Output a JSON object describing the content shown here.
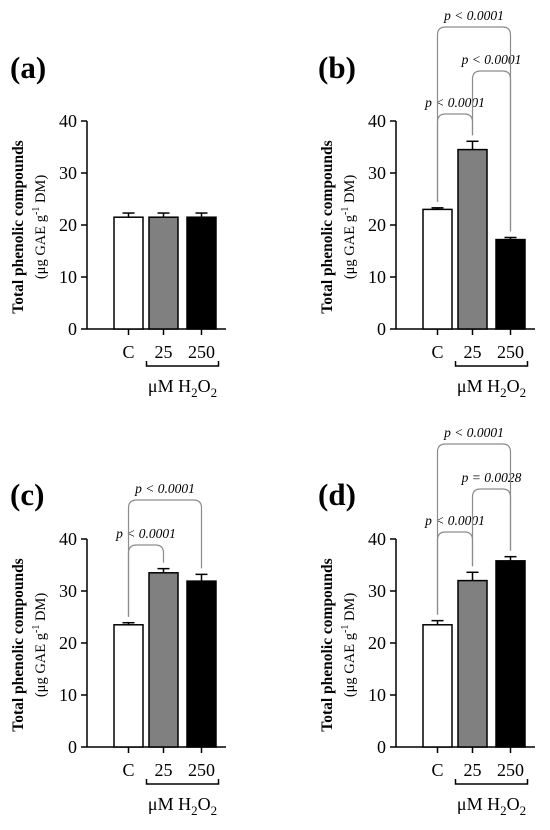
{
  "figure": {
    "ylabel_line1": "Total phenolic compounds",
    "ylabel_unit_prefix": "(μg GAE g",
    "ylabel_unit_exp": "-1",
    "ylabel_unit_suffix": " DM)",
    "treatment_label_prefix": "μM H",
    "treatment_label_sub1": "2",
    "treatment_label_mid": "O",
    "treatment_label_sub2": "2"
  },
  "colors": {
    "control": "#ffffff",
    "dose_25": "#808080",
    "dose_250": "#000000",
    "axis": "#000000",
    "bracket": "#8c8c8c"
  },
  "chart_data": [
    {
      "type": "bar",
      "panel": "(a)",
      "categories": [
        "C",
        "25",
        "250"
      ],
      "values": [
        21.5,
        21.5,
        21.5
      ],
      "errors": [
        0.8,
        0.8,
        0.8
      ],
      "ylim": [
        0,
        40
      ],
      "yticks": [
        0,
        10,
        20,
        30,
        40
      ],
      "comparisons": []
    },
    {
      "type": "bar",
      "panel": "(b)",
      "categories": [
        "C",
        "25",
        "250"
      ],
      "values": [
        23.0,
        34.5,
        17.2
      ],
      "errors": [
        0.3,
        1.6,
        0.4
      ],
      "ylim": [
        0,
        40
      ],
      "yticks": [
        0,
        10,
        20,
        30,
        40
      ],
      "comparisons": [
        {
          "from": 0,
          "to": 1,
          "label": "p < 0.0001"
        },
        {
          "from": 1,
          "to": 2,
          "label": "p < 0.0001"
        },
        {
          "from": 0,
          "to": 2,
          "label": "p < 0.0001"
        }
      ]
    },
    {
      "type": "bar",
      "panel": "(c)",
      "categories": [
        "C",
        "25",
        "250"
      ],
      "values": [
        23.5,
        33.5,
        31.9
      ],
      "errors": [
        0.4,
        0.8,
        1.3
      ],
      "ylim": [
        0,
        40
      ],
      "yticks": [
        0,
        10,
        20,
        30,
        40
      ],
      "comparisons": [
        {
          "from": 0,
          "to": 1,
          "label": "p < 0.0001"
        },
        {
          "from": 0,
          "to": 2,
          "label": "p < 0.0001"
        }
      ]
    },
    {
      "type": "bar",
      "panel": "(d)",
      "categories": [
        "C",
        "25",
        "250"
      ],
      "values": [
        23.5,
        32.0,
        35.8
      ],
      "errors": [
        0.8,
        1.6,
        0.8
      ],
      "ylim": [
        0,
        40
      ],
      "yticks": [
        0,
        10,
        20,
        30,
        40
      ],
      "comparisons": [
        {
          "from": 0,
          "to": 1,
          "label": "p < 0.0001"
        },
        {
          "from": 1,
          "to": 2,
          "label": "p = 0.0028"
        },
        {
          "from": 0,
          "to": 2,
          "label": "p < 0.0001"
        }
      ]
    }
  ]
}
